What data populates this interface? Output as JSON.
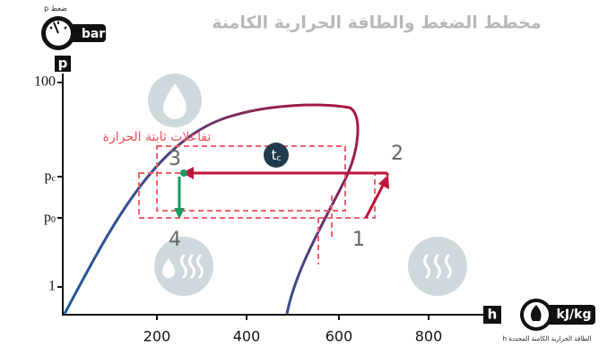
{
  "title": "مخطط الضغط والطاقة الحرارية الكامنة",
  "y_axis": {
    "symbol": "p",
    "unit": "bar",
    "caption": "ضغط",
    "caption_symbol": "p",
    "ticks": [
      {
        "base": "100"
      },
      {
        "base": "p",
        "sub": "c"
      },
      {
        "base": "p",
        "sub": "0"
      },
      {
        "base": "1"
      }
    ]
  },
  "x_axis": {
    "symbol": "h",
    "unit": "kJ/kg",
    "caption": "الطاقة الحرارية الكامنة المحددة",
    "caption_symbol": "h",
    "ticks": [
      "200",
      "400",
      "600",
      "800"
    ]
  },
  "annotation": "تفاعلات ثابتة الحرارة",
  "temperature": {
    "base": "t",
    "sub": "c"
  },
  "points": [
    "1",
    "2",
    "3",
    "4"
  ]
}
